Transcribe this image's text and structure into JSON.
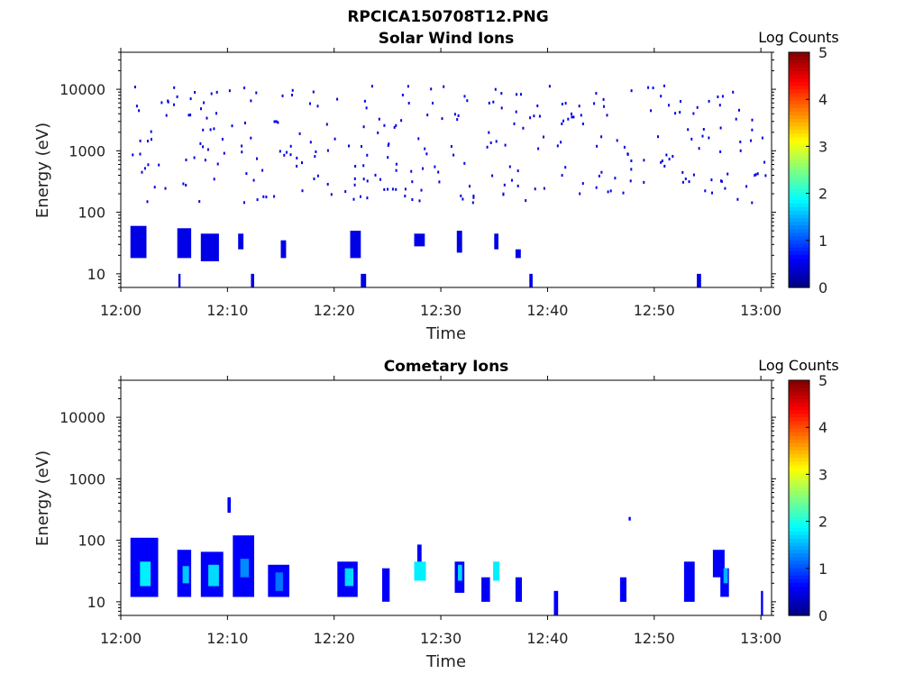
{
  "figure_title": "RPCICA150708T12.PNG",
  "chart_data": [
    {
      "type": "heatmap",
      "title": "Solar Wind Ions",
      "xlabel": "Time",
      "ylabel": "Energy (eV)",
      "x_ticks": [
        "12:00",
        "12:10",
        "12:20",
        "12:30",
        "12:40",
        "12:50",
        "13:00"
      ],
      "y_ticks": [
        "10",
        "100",
        "1000",
        "10000"
      ],
      "y_scale": "log",
      "y_range": [
        6,
        40000
      ],
      "x_range_minutes": [
        0,
        61
      ],
      "colorbar": {
        "label": "Log Counts",
        "ticks": [
          "0",
          "1",
          "2",
          "3",
          "4",
          "5"
        ],
        "range": [
          0,
          5
        ],
        "colormap": "jet"
      },
      "patches": [
        {
          "t0": 0.9,
          "t1": 2.4,
          "e0": 18,
          "e1": 60,
          "v": 0.5
        },
        {
          "t0": 5.3,
          "t1": 6.6,
          "e0": 18,
          "e1": 55,
          "v": 0.5
        },
        {
          "t0": 7.5,
          "t1": 9.2,
          "e0": 16,
          "e1": 45,
          "v": 0.5
        },
        {
          "t0": 11.0,
          "t1": 11.5,
          "e0": 25,
          "e1": 45,
          "v": 0.5
        },
        {
          "t0": 15.0,
          "t1": 15.5,
          "e0": 18,
          "e1": 35,
          "v": 0.5
        },
        {
          "t0": 21.5,
          "t1": 22.5,
          "e0": 18,
          "e1": 50,
          "v": 0.5
        },
        {
          "t0": 27.5,
          "t1": 28.5,
          "e0": 28,
          "e1": 45,
          "v": 0.5
        },
        {
          "t0": 31.5,
          "t1": 32.0,
          "e0": 22,
          "e1": 50,
          "v": 0.5
        },
        {
          "t0": 35.0,
          "t1": 35.4,
          "e0": 25,
          "e1": 45,
          "v": 0.5
        },
        {
          "t0": 37.0,
          "t1": 37.5,
          "e0": 18,
          "e1": 25,
          "v": 0.5
        },
        {
          "t0": 54.0,
          "t1": 54.4,
          "e0": 6,
          "e1": 10,
          "v": 0.5
        },
        {
          "t0": 5.4,
          "t1": 5.6,
          "e0": 6,
          "e1": 10,
          "v": 0.5
        },
        {
          "t0": 12.2,
          "t1": 12.5,
          "e0": 6,
          "e1": 10,
          "v": 0.5
        },
        {
          "t0": 22.5,
          "t1": 23.0,
          "e0": 6,
          "e1": 10,
          "v": 0.5
        },
        {
          "t0": 38.3,
          "t1": 38.6,
          "e0": 6,
          "e1": 10,
          "v": 0.5
        }
      ],
      "scatter_seed": 7,
      "scatter_count": 300,
      "scatter_value": 0.5
    },
    {
      "type": "heatmap",
      "title": "Cometary Ions",
      "xlabel": "Time",
      "ylabel": "Energy (eV)",
      "x_ticks": [
        "12:00",
        "12:10",
        "12:20",
        "12:30",
        "12:40",
        "12:50",
        "13:00"
      ],
      "y_ticks": [
        "10",
        "100",
        "1000",
        "10000"
      ],
      "y_scale": "log",
      "y_range": [
        6,
        40000
      ],
      "x_range_minutes": [
        0,
        61
      ],
      "colorbar": {
        "label": "Log Counts",
        "ticks": [
          "0",
          "1",
          "2",
          "3",
          "4",
          "5"
        ],
        "range": [
          0,
          5
        ],
        "colormap": "jet"
      },
      "patches": [
        {
          "t0": 0.9,
          "t1": 3.5,
          "e0": 12,
          "e1": 110,
          "v": 0.6
        },
        {
          "t0": 1.8,
          "t1": 2.8,
          "e0": 18,
          "e1": 45,
          "v": 1.8
        },
        {
          "t0": 5.3,
          "t1": 6.6,
          "e0": 12,
          "e1": 70,
          "v": 0.6
        },
        {
          "t0": 5.8,
          "t1": 6.4,
          "e0": 20,
          "e1": 38,
          "v": 1.6
        },
        {
          "t0": 7.5,
          "t1": 9.6,
          "e0": 12,
          "e1": 65,
          "v": 0.6
        },
        {
          "t0": 8.2,
          "t1": 9.2,
          "e0": 18,
          "e1": 40,
          "v": 1.7
        },
        {
          "t0": 10.5,
          "t1": 12.5,
          "e0": 12,
          "e1": 120,
          "v": 0.6
        },
        {
          "t0": 11.2,
          "t1": 12.0,
          "e0": 25,
          "e1": 50,
          "v": 1.3
        },
        {
          "t0": 13.8,
          "t1": 15.8,
          "e0": 12,
          "e1": 40,
          "v": 0.6
        },
        {
          "t0": 14.5,
          "t1": 15.2,
          "e0": 15,
          "e1": 30,
          "v": 1.2
        },
        {
          "t0": 20.3,
          "t1": 22.2,
          "e0": 12,
          "e1": 45,
          "v": 0.6
        },
        {
          "t0": 21.0,
          "t1": 21.8,
          "e0": 18,
          "e1": 35,
          "v": 1.7
        },
        {
          "t0": 24.5,
          "t1": 25.2,
          "e0": 10,
          "e1": 35,
          "v": 0.6
        },
        {
          "t0": 27.5,
          "t1": 28.6,
          "e0": 22,
          "e1": 45,
          "v": 1.8
        },
        {
          "t0": 27.8,
          "t1": 28.2,
          "e0": 45,
          "e1": 85,
          "v": 0.6
        },
        {
          "t0": 31.3,
          "t1": 32.2,
          "e0": 14,
          "e1": 45,
          "v": 0.6
        },
        {
          "t0": 31.6,
          "t1": 32.0,
          "e0": 22,
          "e1": 40,
          "v": 1.7
        },
        {
          "t0": 33.8,
          "t1": 34.6,
          "e0": 10,
          "e1": 25,
          "v": 0.6
        },
        {
          "t0": 34.9,
          "t1": 35.5,
          "e0": 22,
          "e1": 45,
          "v": 1.8
        },
        {
          "t0": 37.0,
          "t1": 37.6,
          "e0": 10,
          "e1": 25,
          "v": 0.6
        },
        {
          "t0": 40.6,
          "t1": 41.0,
          "e0": 6,
          "e1": 15,
          "v": 0.6
        },
        {
          "t0": 46.8,
          "t1": 47.4,
          "e0": 10,
          "e1": 25,
          "v": 0.6
        },
        {
          "t0": 52.8,
          "t1": 53.8,
          "e0": 10,
          "e1": 45,
          "v": 0.6
        },
        {
          "t0": 55.5,
          "t1": 56.6,
          "e0": 25,
          "e1": 70,
          "v": 0.6
        },
        {
          "t0": 56.2,
          "t1": 57.0,
          "e0": 12,
          "e1": 35,
          "v": 0.6
        },
        {
          "t0": 56.5,
          "t1": 56.9,
          "e0": 20,
          "e1": 35,
          "v": 1.5
        },
        {
          "t0": 60.0,
          "t1": 60.2,
          "e0": 6,
          "e1": 15,
          "v": 0.6
        },
        {
          "t0": 10.0,
          "t1": 10.3,
          "e0": 280,
          "e1": 500,
          "v": 0.6
        },
        {
          "t0": 47.6,
          "t1": 47.8,
          "e0": 210,
          "e1": 240,
          "v": 0.6
        }
      ],
      "scatter_seed": 0,
      "scatter_count": 0,
      "scatter_value": 0.5
    }
  ]
}
